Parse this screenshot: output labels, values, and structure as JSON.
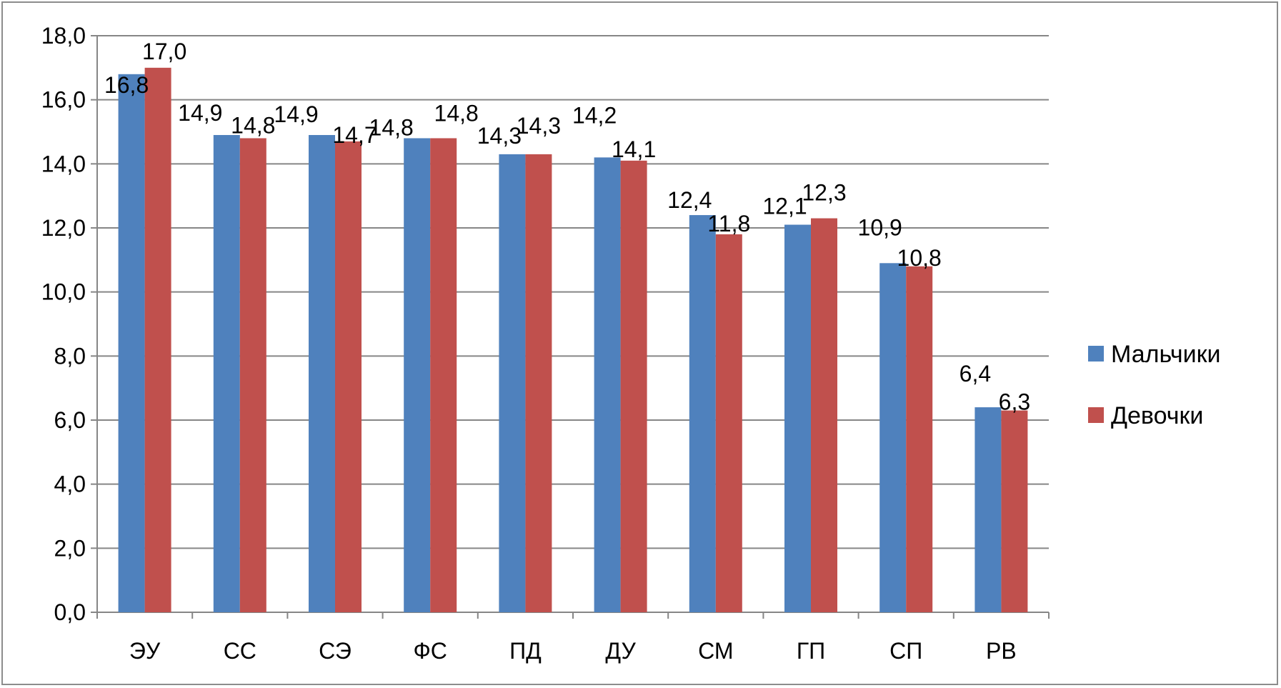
{
  "chart_data": {
    "type": "bar",
    "categories": [
      "ЭУ",
      "СС",
      "СЭ",
      "ФС",
      "ПД",
      "ДУ",
      "СМ",
      "ГП",
      "СП",
      "РВ"
    ],
    "series": [
      {
        "name": "Мальчики",
        "color": "#4F81BD",
        "values": [
          16.8,
          14.9,
          14.9,
          14.8,
          14.3,
          14.2,
          12.4,
          12.1,
          10.9,
          6.4
        ],
        "labels": [
          "16,8",
          "14,9",
          "14,9",
          "14,8",
          "14,3",
          "14,2",
          "12,4",
          "12,1",
          "10,9",
          "6,4"
        ]
      },
      {
        "name": "Девочки",
        "color": "#C0504D",
        "values": [
          17.0,
          14.8,
          14.7,
          14.8,
          14.3,
          14.1,
          11.8,
          12.3,
          10.8,
          6.3
        ],
        "labels": [
          "17,0",
          "14,8",
          "14,7",
          "14,8",
          "14,3",
          "14,1",
          "11,8",
          "12,3",
          "10,8",
          "6,3"
        ]
      }
    ],
    "ylim": [
      0,
      18
    ],
    "yticks": [
      "0,0",
      "2,0",
      "4,0",
      "6,0",
      "8,0",
      "10,0",
      "12,0",
      "14,0",
      "16,0",
      "18,0"
    ],
    "grid": true,
    "legend_position": "right",
    "title": "",
    "xlabel": "",
    "ylabel": ""
  }
}
